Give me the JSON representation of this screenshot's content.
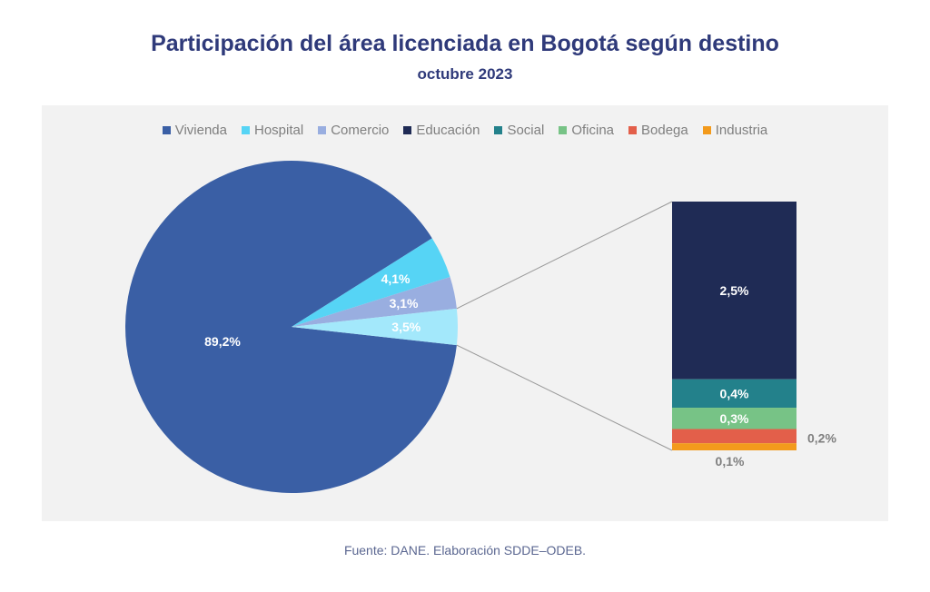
{
  "header": {
    "title": "Participación del área licenciada en Bogotá según destino",
    "subtitle": "octubre 2023"
  },
  "legend": [
    {
      "label": "Vivienda",
      "color": "#3a5fa5"
    },
    {
      "label": "Hospital",
      "color": "#56d4f5"
    },
    {
      "label": "Comercio",
      "color": "#99aee0"
    },
    {
      "label": "Educación",
      "color": "#1f2b55"
    },
    {
      "label": "Social",
      "color": "#23818b"
    },
    {
      "label": "Oficina",
      "color": "#77c386"
    },
    {
      "label": "Bodega",
      "color": "#e35f4a"
    },
    {
      "label": "Industria",
      "color": "#f39a1c"
    }
  ],
  "chart_data": {
    "type": "bar-of-pie",
    "pie": {
      "slices": [
        {
          "name": "Vivienda",
          "value": 89.2,
          "label": "89,2%",
          "color": "#3a5fa5"
        },
        {
          "name": "Hospital",
          "value": 4.1,
          "label": "4,1%",
          "color": "#56d4f5"
        },
        {
          "name": "Comercio",
          "value": 3.1,
          "label": "3,1%",
          "color": "#99aee0"
        },
        {
          "name": "",
          "value": 3.5,
          "label": "3,5%",
          "color": "#a3e8fb"
        }
      ]
    },
    "bar": {
      "segments": [
        {
          "name": "Educación",
          "value": 2.5,
          "label": "2,5%",
          "color": "#1f2b55"
        },
        {
          "name": "Social",
          "value": 0.4,
          "label": "0,4%",
          "color": "#23818b"
        },
        {
          "name": "Oficina",
          "value": 0.3,
          "label": "0,3%",
          "color": "#77c386"
        },
        {
          "name": "Bodega",
          "value": 0.2,
          "label": "0,2%",
          "color": "#e35f4a"
        },
        {
          "name": "Industria",
          "value": 0.1,
          "label": "0,1%",
          "color": "#f39a1c"
        }
      ]
    }
  },
  "footer": {
    "source": "Fuente: DANE. Elaboración SDDE–ODEB."
  }
}
